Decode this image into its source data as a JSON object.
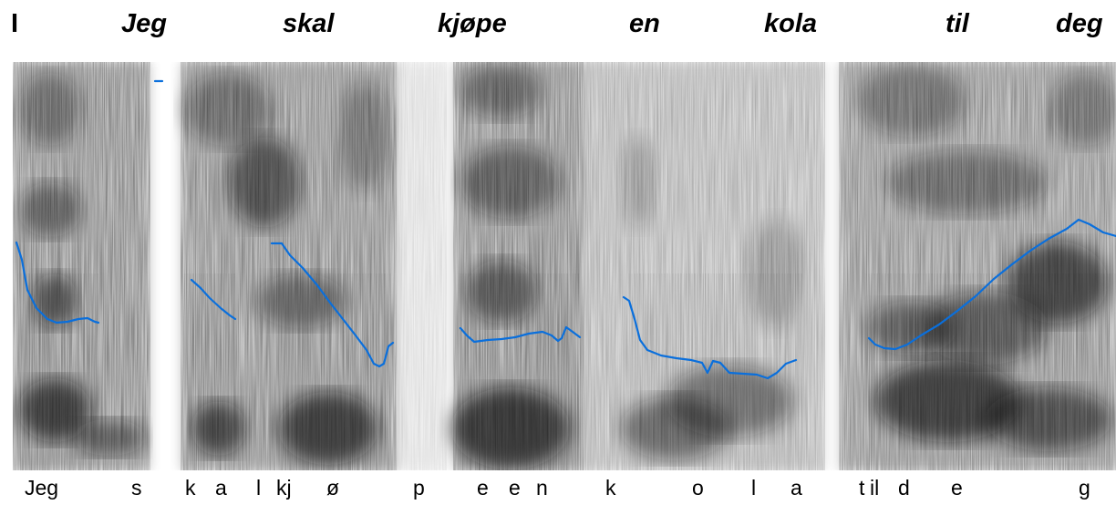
{
  "sentence": {
    "panel_label": "I",
    "words": [
      "Jeg",
      "skal",
      "kjøpe",
      "en",
      "kola",
      "til",
      "deg"
    ]
  },
  "segments": [
    "Jeg",
    "s",
    "k",
    "a",
    "l",
    "kj",
    "ø",
    "p",
    "e",
    "e",
    "n",
    "k",
    "o",
    "l",
    "a",
    "t",
    "il",
    "d",
    "e",
    "g"
  ],
  "colors": {
    "pitch": "#0a6fdc",
    "spectrogram": "#2a2a2a",
    "background": "#ffffff",
    "text": "#000000"
  }
}
